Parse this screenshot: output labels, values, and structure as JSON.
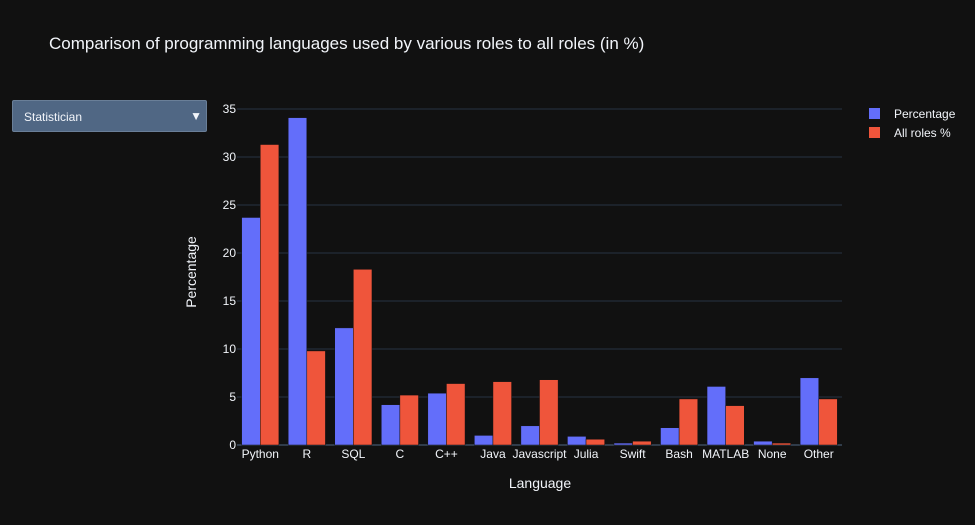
{
  "chart_data": {
    "type": "bar",
    "title": "Comparison of programming languages used by various roles to all roles (in %)",
    "xlabel": "Language",
    "ylabel": "Percentage",
    "ylim": [
      0,
      35
    ],
    "yticks": [
      0,
      5,
      10,
      15,
      20,
      25,
      30,
      35
    ],
    "grid": true,
    "legend_position": "top-right",
    "categories": [
      "Python",
      "R",
      "SQL",
      "C",
      "C++",
      "Java",
      "Javascript",
      "Julia",
      "Swift",
      "Bash",
      "MATLAB",
      "None",
      "Other"
    ],
    "series": [
      {
        "name": "Percentage",
        "color": "#636efa",
        "values": [
          23.7,
          34.1,
          12.2,
          4.2,
          5.4,
          1.0,
          2.0,
          0.9,
          0.2,
          1.8,
          6.1,
          0.4,
          7.0
        ]
      },
      {
        "name": "All roles %",
        "color": "#ef553b",
        "values": [
          31.3,
          9.8,
          18.3,
          5.2,
          6.4,
          6.6,
          6.8,
          0.6,
          0.4,
          4.8,
          4.1,
          0.2,
          4.8
        ]
      }
    ]
  },
  "dropdown": {
    "selected": "Statistician",
    "arrow_icon": "triangle-down-icon"
  },
  "colors": {
    "background": "#111111",
    "grid": "#283442",
    "text": "#f2f5fa",
    "dropdown_bg": "#506784"
  }
}
